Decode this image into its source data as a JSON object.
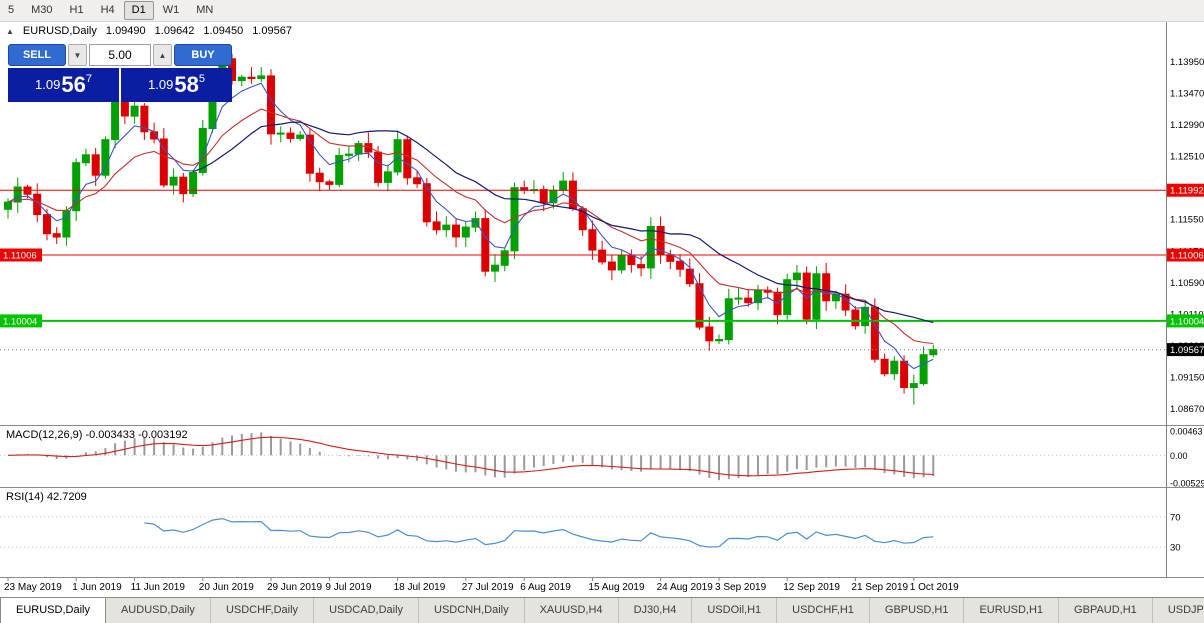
{
  "toolbar": {
    "timeframes": [
      "5",
      "M30",
      "H1",
      "H4",
      "D1",
      "W1",
      "MN"
    ],
    "active": "D1"
  },
  "chart_header": {
    "collapse_icon": "▲",
    "symbol_period": "EURUSD,Daily",
    "open": "1.09490",
    "high": "1.09642",
    "low": "1.09450",
    "close": "1.09567"
  },
  "one_click": {
    "sell_label": "SELL",
    "buy_label": "BUY",
    "lot_size": "5.00",
    "sell_price": {
      "base": "1.09",
      "pips": "56",
      "point": "7"
    },
    "buy_price": {
      "base": "1.09",
      "pips": "58",
      "point": "5"
    },
    "colors": {
      "button": "#2f6bd0",
      "price_bg": "#0b1da0"
    }
  },
  "indicators": {
    "macd_label": "MACD(12,26,9) -0.003433 -0.003192",
    "rsi_label": "RSI(14) 42.7209"
  },
  "tabs": [
    "EURUSD,Daily",
    "AUDUSD,Daily",
    "USDCHF,Daily",
    "USDCAD,Daily",
    "USDCNH,Daily",
    "XAUUSD,H4",
    "DJ30,H4",
    "USDOil,H1",
    "USDCHF,H1",
    "GBPUSD,H1",
    "EURUSD,H1",
    "GBPAUD,H1",
    "USDJP"
  ],
  "active_tab": "EURUSD,Daily",
  "chart_data": {
    "type": "candlestick",
    "symbol": "EURUSD",
    "timeframe": "Daily",
    "price_range": {
      "top": 1.1455,
      "bottom": 1.0842
    },
    "y_ticks": [
      "1.13950",
      "1.13470",
      "1.12990",
      "1.12510",
      "1.12030",
      "1.11550",
      "1.11070",
      "1.10590",
      "1.10110",
      "1.09630",
      "1.09150",
      "1.08670"
    ],
    "x_labels": [
      {
        "index": 0,
        "label": "23 May 2019"
      },
      {
        "index": 7,
        "label": "1 Jun 2019"
      },
      {
        "index": 13,
        "label": "11 Jun 2019"
      },
      {
        "index": 20,
        "label": "20 Jun 2019"
      },
      {
        "index": 27,
        "label": "29 Jun 2019"
      },
      {
        "index": 33,
        "label": "9 Jul 2019"
      },
      {
        "index": 40,
        "label": "18 Jul 2019"
      },
      {
        "index": 47,
        "label": "27 Jul 2019"
      },
      {
        "index": 53,
        "label": "6 Aug 2019"
      },
      {
        "index": 60,
        "label": "15 Aug 2019"
      },
      {
        "index": 67,
        "label": "24 Aug 2019"
      },
      {
        "index": 73,
        "label": "3 Sep 2019"
      },
      {
        "index": 80,
        "label": "12 Sep 2019"
      },
      {
        "index": 87,
        "label": "21 Sep 2019"
      },
      {
        "index": 93,
        "label": "1 Oct 2019"
      }
    ],
    "first_open": 1.117,
    "closes": [
      1.1181,
      1.1204,
      1.1193,
      1.1162,
      1.1133,
      1.1128,
      1.1168,
      1.1241,
      1.1253,
      1.1222,
      1.1276,
      1.1334,
      1.1312,
      1.1327,
      1.1288,
      1.1277,
      1.1207,
      1.1219,
      1.1194,
      1.1226,
      1.1293,
      1.1369,
      1.1399,
      1.1366,
      1.1371,
      1.1369,
      1.1373,
      1.1285,
      1.1286,
      1.1278,
      1.1283,
      1.1225,
      1.1212,
      1.1208,
      1.1252,
      1.1254,
      1.127,
      1.1257,
      1.1211,
      1.1227,
      1.1276,
      1.1218,
      1.1209,
      1.1151,
      1.1139,
      1.1146,
      1.1128,
      1.1143,
      1.1156,
      1.1076,
      1.1085,
      1.1107,
      1.1203,
      1.1199,
      1.12,
      1.118,
      1.1199,
      1.1213,
      1.1171,
      1.1139,
      1.1108,
      1.109,
      1.1078,
      1.11,
      1.1086,
      1.1081,
      1.1144,
      1.1101,
      1.1091,
      1.1079,
      1.1057,
      1.0991,
      1.097,
      1.0972,
      1.1034,
      1.1035,
      1.1028,
      1.1047,
      1.1044,
      1.101,
      1.1063,
      1.1073,
      1.1003,
      1.1072,
      1.1031,
      1.1041,
      1.1017,
      1.0993,
      1.1021,
      1.0942,
      1.092,
      1.0939,
      1.0899,
      1.0905,
      1.0949,
      1.09567
    ],
    "last_candle": {
      "open": 1.0949,
      "high": 1.09642,
      "low": 1.0945,
      "close": 1.09567
    },
    "hlines": [
      {
        "price": 1.11992,
        "label": "1.11992",
        "color": "#ee0000",
        "width": 1,
        "left_label": false
      },
      {
        "price": 1.11006,
        "label": "1.11006",
        "color": "#ee0000",
        "width": 1,
        "left_label": true
      },
      {
        "price": 1.10004,
        "label": "1.10004",
        "color": "#00c400",
        "width": 2,
        "left_label": true
      }
    ],
    "bid": {
      "price": 1.09567,
      "label": "1.09567",
      "color": "#000000"
    },
    "colors": {
      "up": "#00a000",
      "down": "#dd0000",
      "ma_fast": "#3a56c8",
      "ma_mid": "#c03030",
      "ma_slow": "#121a6e",
      "hist": "#9a9a9a",
      "signal": "#cc2020",
      "rsi": "#4a8fd0"
    },
    "macd": {
      "params": "12,26,9",
      "ticks": [
        {
          "value": 0.00463,
          "label": "0.00463"
        },
        {
          "value": 0,
          "label": "0.00"
        },
        {
          "value": -0.00529,
          "label": "-0.00529"
        }
      ]
    },
    "rsi": {
      "period": 14,
      "value": 42.7209,
      "levels": [
        {
          "value": 70,
          "label": "70"
        },
        {
          "value": 30,
          "label": "30"
        }
      ]
    }
  }
}
